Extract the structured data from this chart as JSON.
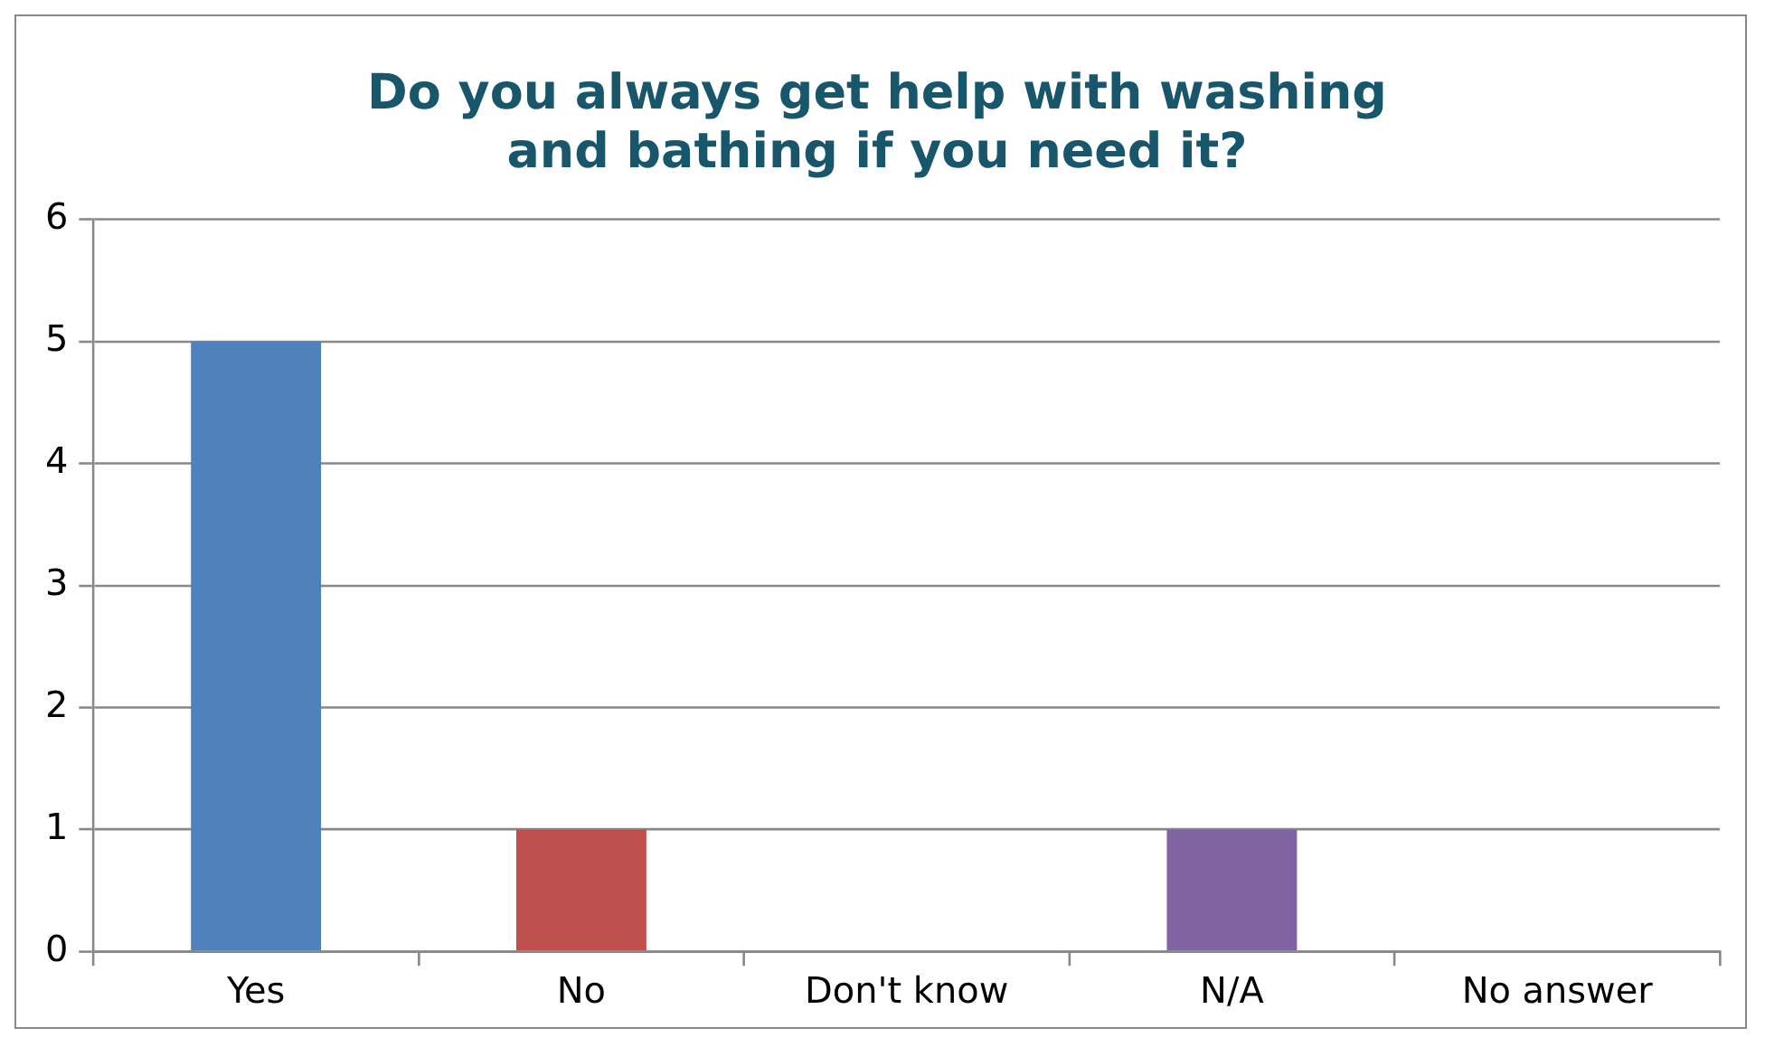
{
  "chart_data": {
    "type": "bar",
    "title": "Do you always get help with washing\nand bathing if you need it?",
    "categories": [
      "Yes",
      "No",
      "Don't know",
      "N/A",
      "No answer"
    ],
    "values": [
      5,
      1,
      0,
      1,
      0
    ],
    "colors": [
      "#4f81bd",
      "#c0504d",
      "#9bbb59",
      "#8064a2",
      "#4bacc6"
    ],
    "ylim": [
      0,
      6
    ],
    "yticks": [
      0,
      1,
      2,
      3,
      4,
      5,
      6
    ],
    "grid": "y",
    "legend": false
  }
}
